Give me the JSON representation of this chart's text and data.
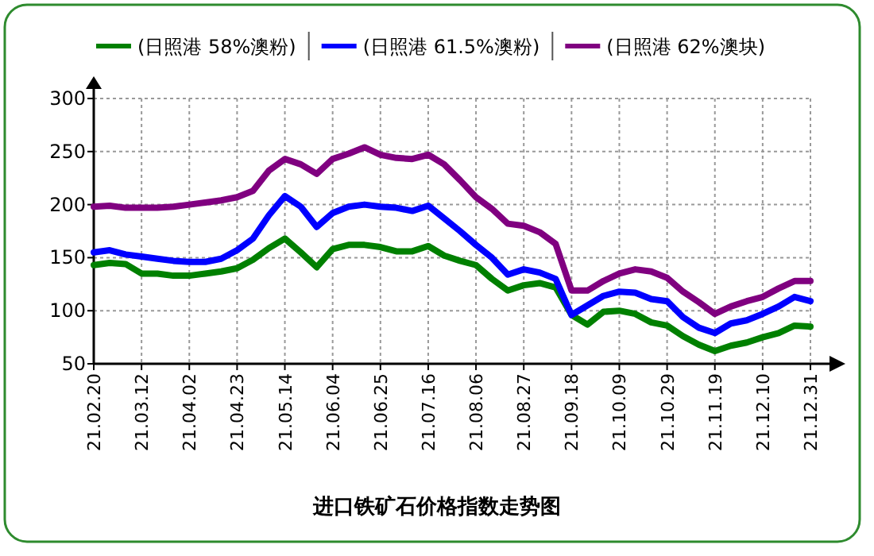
{
  "chart_data": {
    "type": "line",
    "title": "进口铁矿石价格指数走势图",
    "categories": [
      "21.02.20",
      null,
      null,
      "21.03.12",
      null,
      null,
      "21.04.02",
      null,
      null,
      "21.04.23",
      null,
      null,
      "21.05.14",
      null,
      null,
      "21.06.04",
      null,
      null,
      "21.06.25",
      null,
      null,
      "21.07.16",
      null,
      null,
      "21.08.06",
      null,
      null,
      "21.08.27",
      null,
      null,
      "21.09.18",
      null,
      null,
      "21.10.09",
      null,
      null,
      "21.10.29",
      null,
      null,
      "21.11.19",
      null,
      null,
      "21.12.10",
      null,
      null,
      "21.12.31"
    ],
    "series": [
      {
        "name": "(日照港 58%澳粉)",
        "color": "#008000",
        "values": [
          143,
          145,
          144,
          135,
          135,
          133,
          133,
          135,
          137,
          140,
          148,
          159,
          168,
          155,
          141,
          158,
          162,
          162,
          160,
          156,
          156,
          161,
          152,
          147,
          143,
          130,
          119,
          124,
          126,
          122,
          96,
          87,
          99,
          100,
          97,
          89,
          86,
          76,
          68,
          62,
          67,
          70,
          75,
          79,
          86,
          85
        ]
      },
      {
        "name": "(日照港 61.5%澳粉)",
        "color": "#0000ff",
        "values": [
          155,
          157,
          153,
          151,
          149,
          147,
          146,
          146,
          149,
          157,
          168,
          190,
          208,
          198,
          179,
          192,
          198,
          200,
          198,
          197,
          194,
          199,
          187,
          175,
          162,
          150,
          134,
          139,
          136,
          130,
          96,
          105,
          114,
          118,
          117,
          111,
          109,
          94,
          84,
          79,
          88,
          91,
          97,
          104,
          113,
          109
        ]
      },
      {
        "name": "(日照港 62%澳块)",
        "color": "#800080",
        "values": [
          198,
          199,
          197,
          197,
          197,
          198,
          200,
          202,
          204,
          207,
          213,
          232,
          243,
          238,
          229,
          243,
          248,
          254,
          247,
          244,
          243,
          247,
          238,
          223,
          207,
          196,
          182,
          180,
          174,
          163,
          119,
          119,
          128,
          135,
          139,
          137,
          131,
          118,
          108,
          97,
          104,
          109,
          113,
          121,
          128,
          128
        ]
      }
    ],
    "ylim": [
      50,
      300
    ],
    "yticks": [
      50,
      100,
      150,
      200,
      250,
      300
    ],
    "grid": true,
    "legend": "top",
    "marker": "none",
    "line_style": "solid"
  }
}
